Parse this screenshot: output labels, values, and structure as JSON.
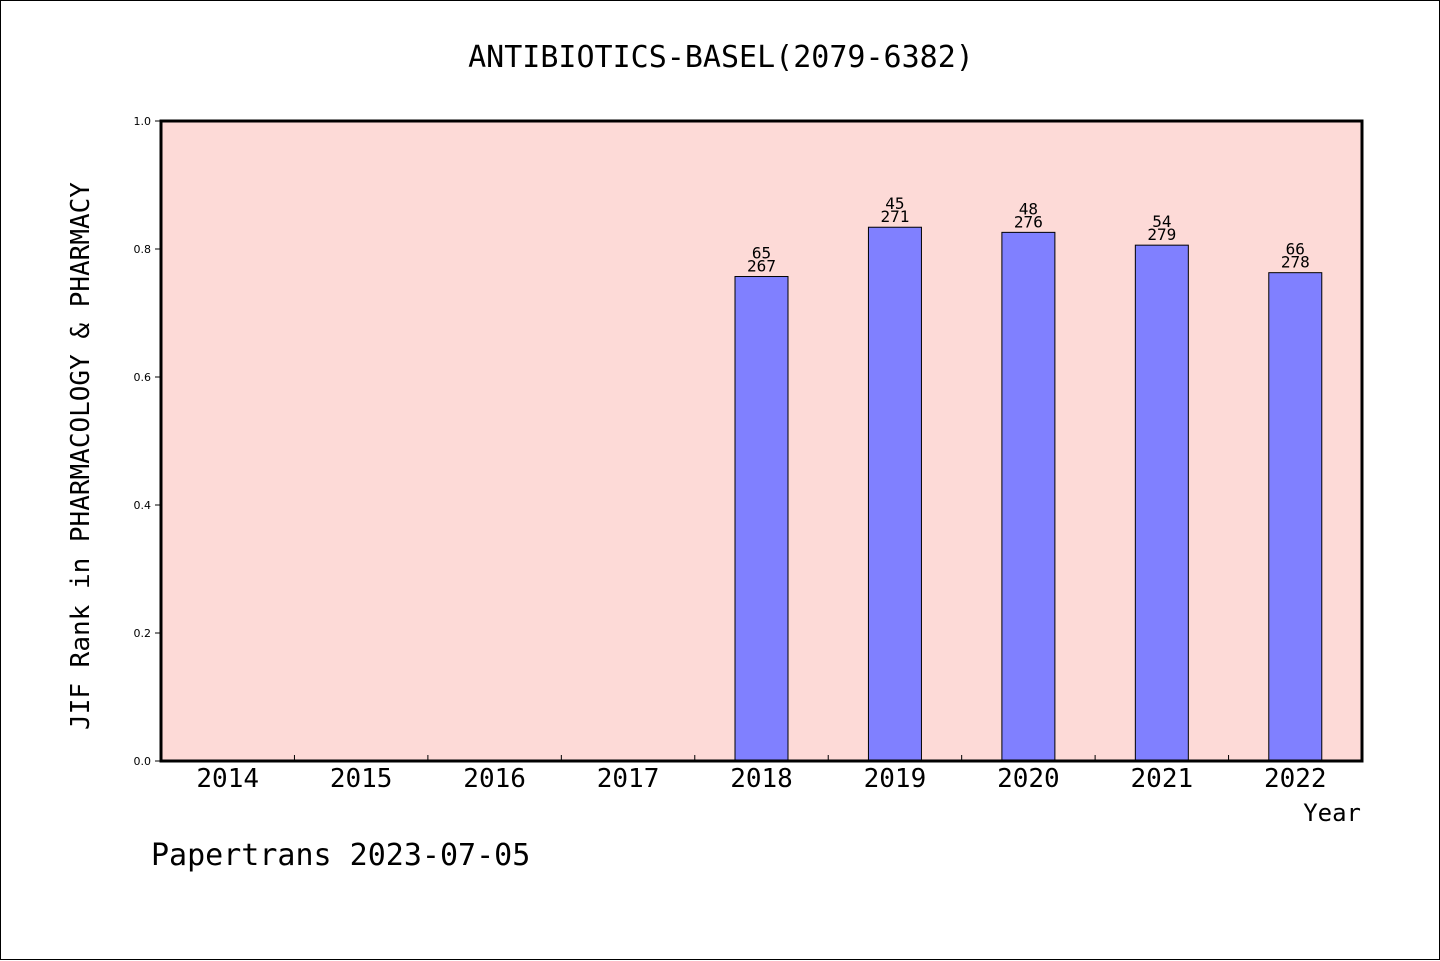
{
  "chart_data": {
    "type": "bar",
    "title": "ANTIBIOTICS-BASEL(2079-6382)",
    "xlabel": "Year",
    "ylabel": "JIF Rank in PHARMACOLOGY & PHARMACY",
    "categories": [
      "2014",
      "2015",
      "2016",
      "2017",
      "2018",
      "2019",
      "2020",
      "2021",
      "2022"
    ],
    "values": [
      null,
      null,
      null,
      null,
      0.757,
      0.834,
      0.826,
      0.806,
      0.763
    ],
    "bar_labels_top": [
      "",
      "",
      "",
      "",
      "65",
      "45",
      "48",
      "54",
      "66"
    ],
    "bar_labels_bottom": [
      "",
      "",
      "",
      "",
      "267",
      "271",
      "276",
      "279",
      "278"
    ],
    "ylim": [
      0,
      1.0
    ],
    "yticks": [
      "0.0",
      "0.2",
      "0.4",
      "0.6",
      "0.8",
      "1.0"
    ],
    "grid": false,
    "colors": {
      "plot_bg": "#fddad7",
      "bar_fill": "#8080ff",
      "axis": "#000000"
    }
  },
  "footer": {
    "text": "Papertrans 2023-07-05"
  }
}
